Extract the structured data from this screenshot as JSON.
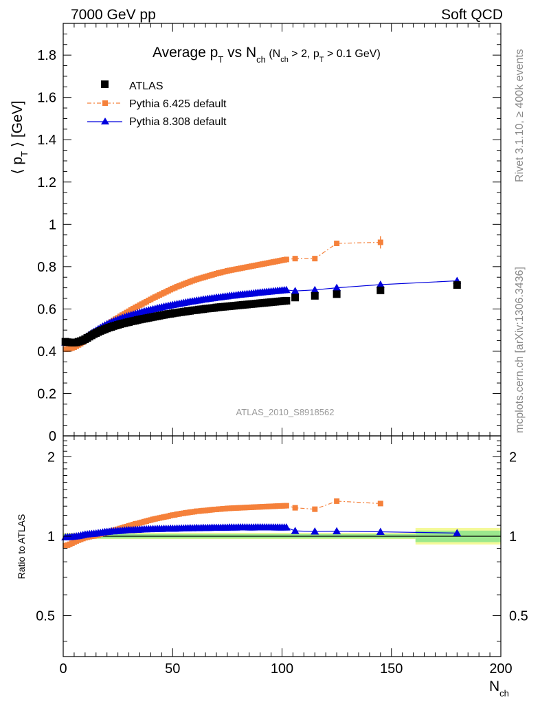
{
  "header": {
    "left": "7000 GeV pp",
    "right": "Soft QCD"
  },
  "side_labels": {
    "rivet": "Rivet 3.1.10, ≥ 400k events",
    "mcplots": "mcplots.cern.ch [arXiv:1306.3436]"
  },
  "chart_data": {
    "type": "scatter",
    "title": {
      "main": "Average p",
      "main_sub": "T",
      "vs": " vs N",
      "vs_sub": "ch",
      "cut_open": " (N",
      "cut_sub1": "ch",
      "cut_mid": " > 2, p",
      "cut_sub2": "T",
      "cut_end": " > 0.1 GeV)"
    },
    "watermark": "ATLAS_2010_S8918562",
    "ylabel": {
      "open": "⟨ p",
      "sub": "T",
      "close": " ⟩  [GeV]"
    },
    "xlabel": {
      "main": "N",
      "sub": "ch"
    },
    "ratio_ylabel": "Ratio to ATLAS",
    "xlim": [
      0,
      200
    ],
    "ylim": [
      0,
      1.95
    ],
    "ratio_ylim": [
      0.35,
      2.4
    ],
    "ratio_log": true,
    "x_ticks": [
      0,
      50,
      100,
      150,
      200
    ],
    "y_ticks": [
      {
        "v": 0,
        "l": "0"
      },
      {
        "v": 0.2,
        "l": "0.2"
      },
      {
        "v": 0.4,
        "l": "0.4"
      },
      {
        "v": 0.6,
        "l": "0.6"
      },
      {
        "v": 0.8,
        "l": "0.8"
      },
      {
        "v": 1.0,
        "l": "1"
      },
      {
        "v": 1.2,
        "l": "1.2"
      },
      {
        "v": 1.4,
        "l": "1.4"
      },
      {
        "v": 1.6,
        "l": "1.6"
      },
      {
        "v": 1.8,
        "l": "1.8"
      }
    ],
    "ratio_ticks": [
      {
        "v": 0.5,
        "l": "0.5"
      },
      {
        "v": 1,
        "l": "1"
      },
      {
        "v": 2,
        "l": "2"
      }
    ],
    "series": [
      {
        "name": "ATLAS",
        "color": "#000000",
        "marker": "square",
        "x": [
          1,
          2,
          3,
          4,
          5,
          6,
          7,
          8,
          9,
          10,
          11,
          12,
          13,
          14,
          15,
          16,
          17,
          18,
          19,
          20,
          21,
          22,
          23,
          24,
          25,
          26,
          27,
          28,
          29,
          30,
          31,
          32,
          33,
          34,
          35,
          36,
          37,
          38,
          39,
          40,
          41,
          42,
          43,
          44,
          45,
          46,
          47,
          48,
          49,
          50,
          51,
          52,
          53,
          54,
          55,
          56,
          57,
          58,
          59,
          60,
          61,
          62,
          63,
          64,
          65,
          66,
          67,
          68,
          69,
          70,
          71,
          72,
          73,
          74,
          75,
          76,
          77,
          78,
          79,
          80,
          81,
          82,
          83,
          84,
          85,
          86,
          87,
          88,
          89,
          90,
          91,
          92,
          93,
          94,
          95,
          96,
          97,
          98,
          99,
          100,
          101,
          102,
          106,
          115,
          125,
          145,
          180
        ],
        "y": [
          0.445,
          0.443,
          0.442,
          0.441,
          0.441,
          0.442,
          0.445,
          0.448,
          0.452,
          0.457,
          0.463,
          0.469,
          0.475,
          0.481,
          0.486,
          0.491,
          0.496,
          0.5,
          0.504,
          0.508,
          0.512,
          0.515,
          0.519,
          0.522,
          0.525,
          0.528,
          0.531,
          0.533,
          0.536,
          0.538,
          0.541,
          0.543,
          0.545,
          0.548,
          0.55,
          0.552,
          0.554,
          0.556,
          0.558,
          0.56,
          0.562,
          0.564,
          0.566,
          0.568,
          0.57,
          0.572,
          0.574,
          0.576,
          0.577,
          0.579,
          0.581,
          0.582,
          0.584,
          0.585,
          0.587,
          0.588,
          0.59,
          0.591,
          0.593,
          0.594,
          0.595,
          0.597,
          0.598,
          0.599,
          0.601,
          0.602,
          0.603,
          0.604,
          0.605,
          0.607,
          0.608,
          0.609,
          0.61,
          0.611,
          0.612,
          0.613,
          0.614,
          0.615,
          0.616,
          0.617,
          0.618,
          0.619,
          0.62,
          0.621,
          0.622,
          0.623,
          0.624,
          0.625,
          0.626,
          0.627,
          0.628,
          0.629,
          0.63,
          0.631,
          0.632,
          0.633,
          0.634,
          0.635,
          0.636,
          0.637,
          0.638,
          0.639,
          0.654,
          0.662,
          0.67,
          0.688,
          0.713
        ]
      },
      {
        "name": "Pythia 6.425 default",
        "color": "#f5813b",
        "marker": "square-small",
        "x": [
          1,
          2,
          3,
          4,
          5,
          6,
          7,
          8,
          9,
          10,
          11,
          12,
          13,
          14,
          15,
          16,
          17,
          18,
          19,
          20,
          21,
          22,
          23,
          24,
          25,
          26,
          27,
          28,
          29,
          30,
          31,
          32,
          33,
          34,
          35,
          36,
          37,
          38,
          39,
          40,
          41,
          42,
          43,
          44,
          45,
          46,
          47,
          48,
          49,
          50,
          51,
          52,
          53,
          54,
          55,
          56,
          57,
          58,
          59,
          60,
          61,
          62,
          63,
          64,
          65,
          66,
          67,
          68,
          69,
          70,
          71,
          72,
          73,
          74,
          75,
          76,
          77,
          78,
          79,
          80,
          81,
          82,
          83,
          84,
          85,
          86,
          87,
          88,
          89,
          90,
          91,
          92,
          93,
          94,
          95,
          96,
          97,
          98,
          99,
          100,
          101,
          102,
          106,
          115,
          125,
          145
        ],
        "y": [
          0.41,
          0.41,
          0.412,
          0.415,
          0.419,
          0.424,
          0.43,
          0.436,
          0.443,
          0.451,
          0.459,
          0.467,
          0.475,
          0.482,
          0.49,
          0.497,
          0.505,
          0.512,
          0.519,
          0.526,
          0.532,
          0.539,
          0.546,
          0.552,
          0.558,
          0.565,
          0.571,
          0.577,
          0.583,
          0.589,
          0.595,
          0.601,
          0.607,
          0.612,
          0.618,
          0.623,
          0.629,
          0.634,
          0.64,
          0.645,
          0.651,
          0.656,
          0.661,
          0.666,
          0.671,
          0.676,
          0.681,
          0.686,
          0.691,
          0.696,
          0.7,
          0.705,
          0.709,
          0.713,
          0.717,
          0.721,
          0.725,
          0.729,
          0.733,
          0.736,
          0.74,
          0.743,
          0.746,
          0.749,
          0.752,
          0.755,
          0.758,
          0.761,
          0.764,
          0.767,
          0.77,
          0.772,
          0.775,
          0.777,
          0.78,
          0.782,
          0.784,
          0.786,
          0.788,
          0.79,
          0.792,
          0.794,
          0.796,
          0.798,
          0.8,
          0.802,
          0.804,
          0.806,
          0.808,
          0.81,
          0.812,
          0.814,
          0.816,
          0.818,
          0.82,
          0.822,
          0.824,
          0.826,
          0.828,
          0.83,
          0.832,
          0.834,
          0.838,
          0.838,
          0.91,
          0.915
        ]
      },
      {
        "name": "Pythia 8.308 default",
        "color": "#0000dd",
        "marker": "triangle",
        "x": [
          1,
          2,
          3,
          4,
          5,
          6,
          7,
          8,
          9,
          10,
          11,
          12,
          13,
          14,
          15,
          16,
          17,
          18,
          19,
          20,
          21,
          22,
          23,
          24,
          25,
          26,
          27,
          28,
          29,
          30,
          31,
          32,
          33,
          34,
          35,
          36,
          37,
          38,
          39,
          40,
          41,
          42,
          43,
          44,
          45,
          46,
          47,
          48,
          49,
          50,
          51,
          52,
          53,
          54,
          55,
          56,
          57,
          58,
          59,
          60,
          61,
          62,
          63,
          64,
          65,
          66,
          67,
          68,
          69,
          70,
          71,
          72,
          73,
          74,
          75,
          76,
          77,
          78,
          79,
          80,
          81,
          82,
          83,
          84,
          85,
          86,
          87,
          88,
          89,
          90,
          91,
          92,
          93,
          94,
          95,
          96,
          97,
          98,
          99,
          100,
          101,
          102,
          106,
          115,
          125,
          145,
          180
        ],
        "y": [
          0.441,
          0.44,
          0.439,
          0.439,
          0.44,
          0.442,
          0.446,
          0.451,
          0.457,
          0.464,
          0.471,
          0.478,
          0.485,
          0.492,
          0.498,
          0.505,
          0.511,
          0.517,
          0.523,
          0.528,
          0.533,
          0.538,
          0.542,
          0.546,
          0.55,
          0.554,
          0.558,
          0.561,
          0.565,
          0.568,
          0.571,
          0.574,
          0.577,
          0.58,
          0.583,
          0.586,
          0.589,
          0.591,
          0.594,
          0.596,
          0.599,
          0.601,
          0.604,
          0.606,
          0.608,
          0.611,
          0.613,
          0.615,
          0.617,
          0.619,
          0.621,
          0.623,
          0.625,
          0.627,
          0.629,
          0.631,
          0.633,
          0.635,
          0.636,
          0.638,
          0.64,
          0.641,
          0.643,
          0.645,
          0.646,
          0.648,
          0.649,
          0.651,
          0.652,
          0.654,
          0.655,
          0.656,
          0.658,
          0.659,
          0.66,
          0.662,
          0.663,
          0.664,
          0.665,
          0.667,
          0.668,
          0.669,
          0.67,
          0.671,
          0.672,
          0.673,
          0.674,
          0.676,
          0.677,
          0.678,
          0.679,
          0.68,
          0.681,
          0.682,
          0.683,
          0.684,
          0.685,
          0.686,
          0.687,
          0.688,
          0.689,
          0.69,
          0.685,
          0.69,
          0.7,
          0.715,
          0.733
        ]
      }
    ],
    "ratio_band": [
      {
        "x0": 0,
        "x1": 161,
        "lo": 0.98,
        "hi": 1.02
      },
      {
        "x0": 161,
        "x1": 200,
        "lo": 0.95,
        "hi": 1.05
      }
    ],
    "ratio_band_outer": [
      {
        "x0": 0,
        "x1": 161,
        "lo": 0.975,
        "hi": 1.03
      },
      {
        "x0": 161,
        "x1": 200,
        "lo": 0.93,
        "hi": 1.075
      }
    ],
    "band_colors": {
      "inner": "#9be88d",
      "outer": "#f4f999"
    }
  }
}
